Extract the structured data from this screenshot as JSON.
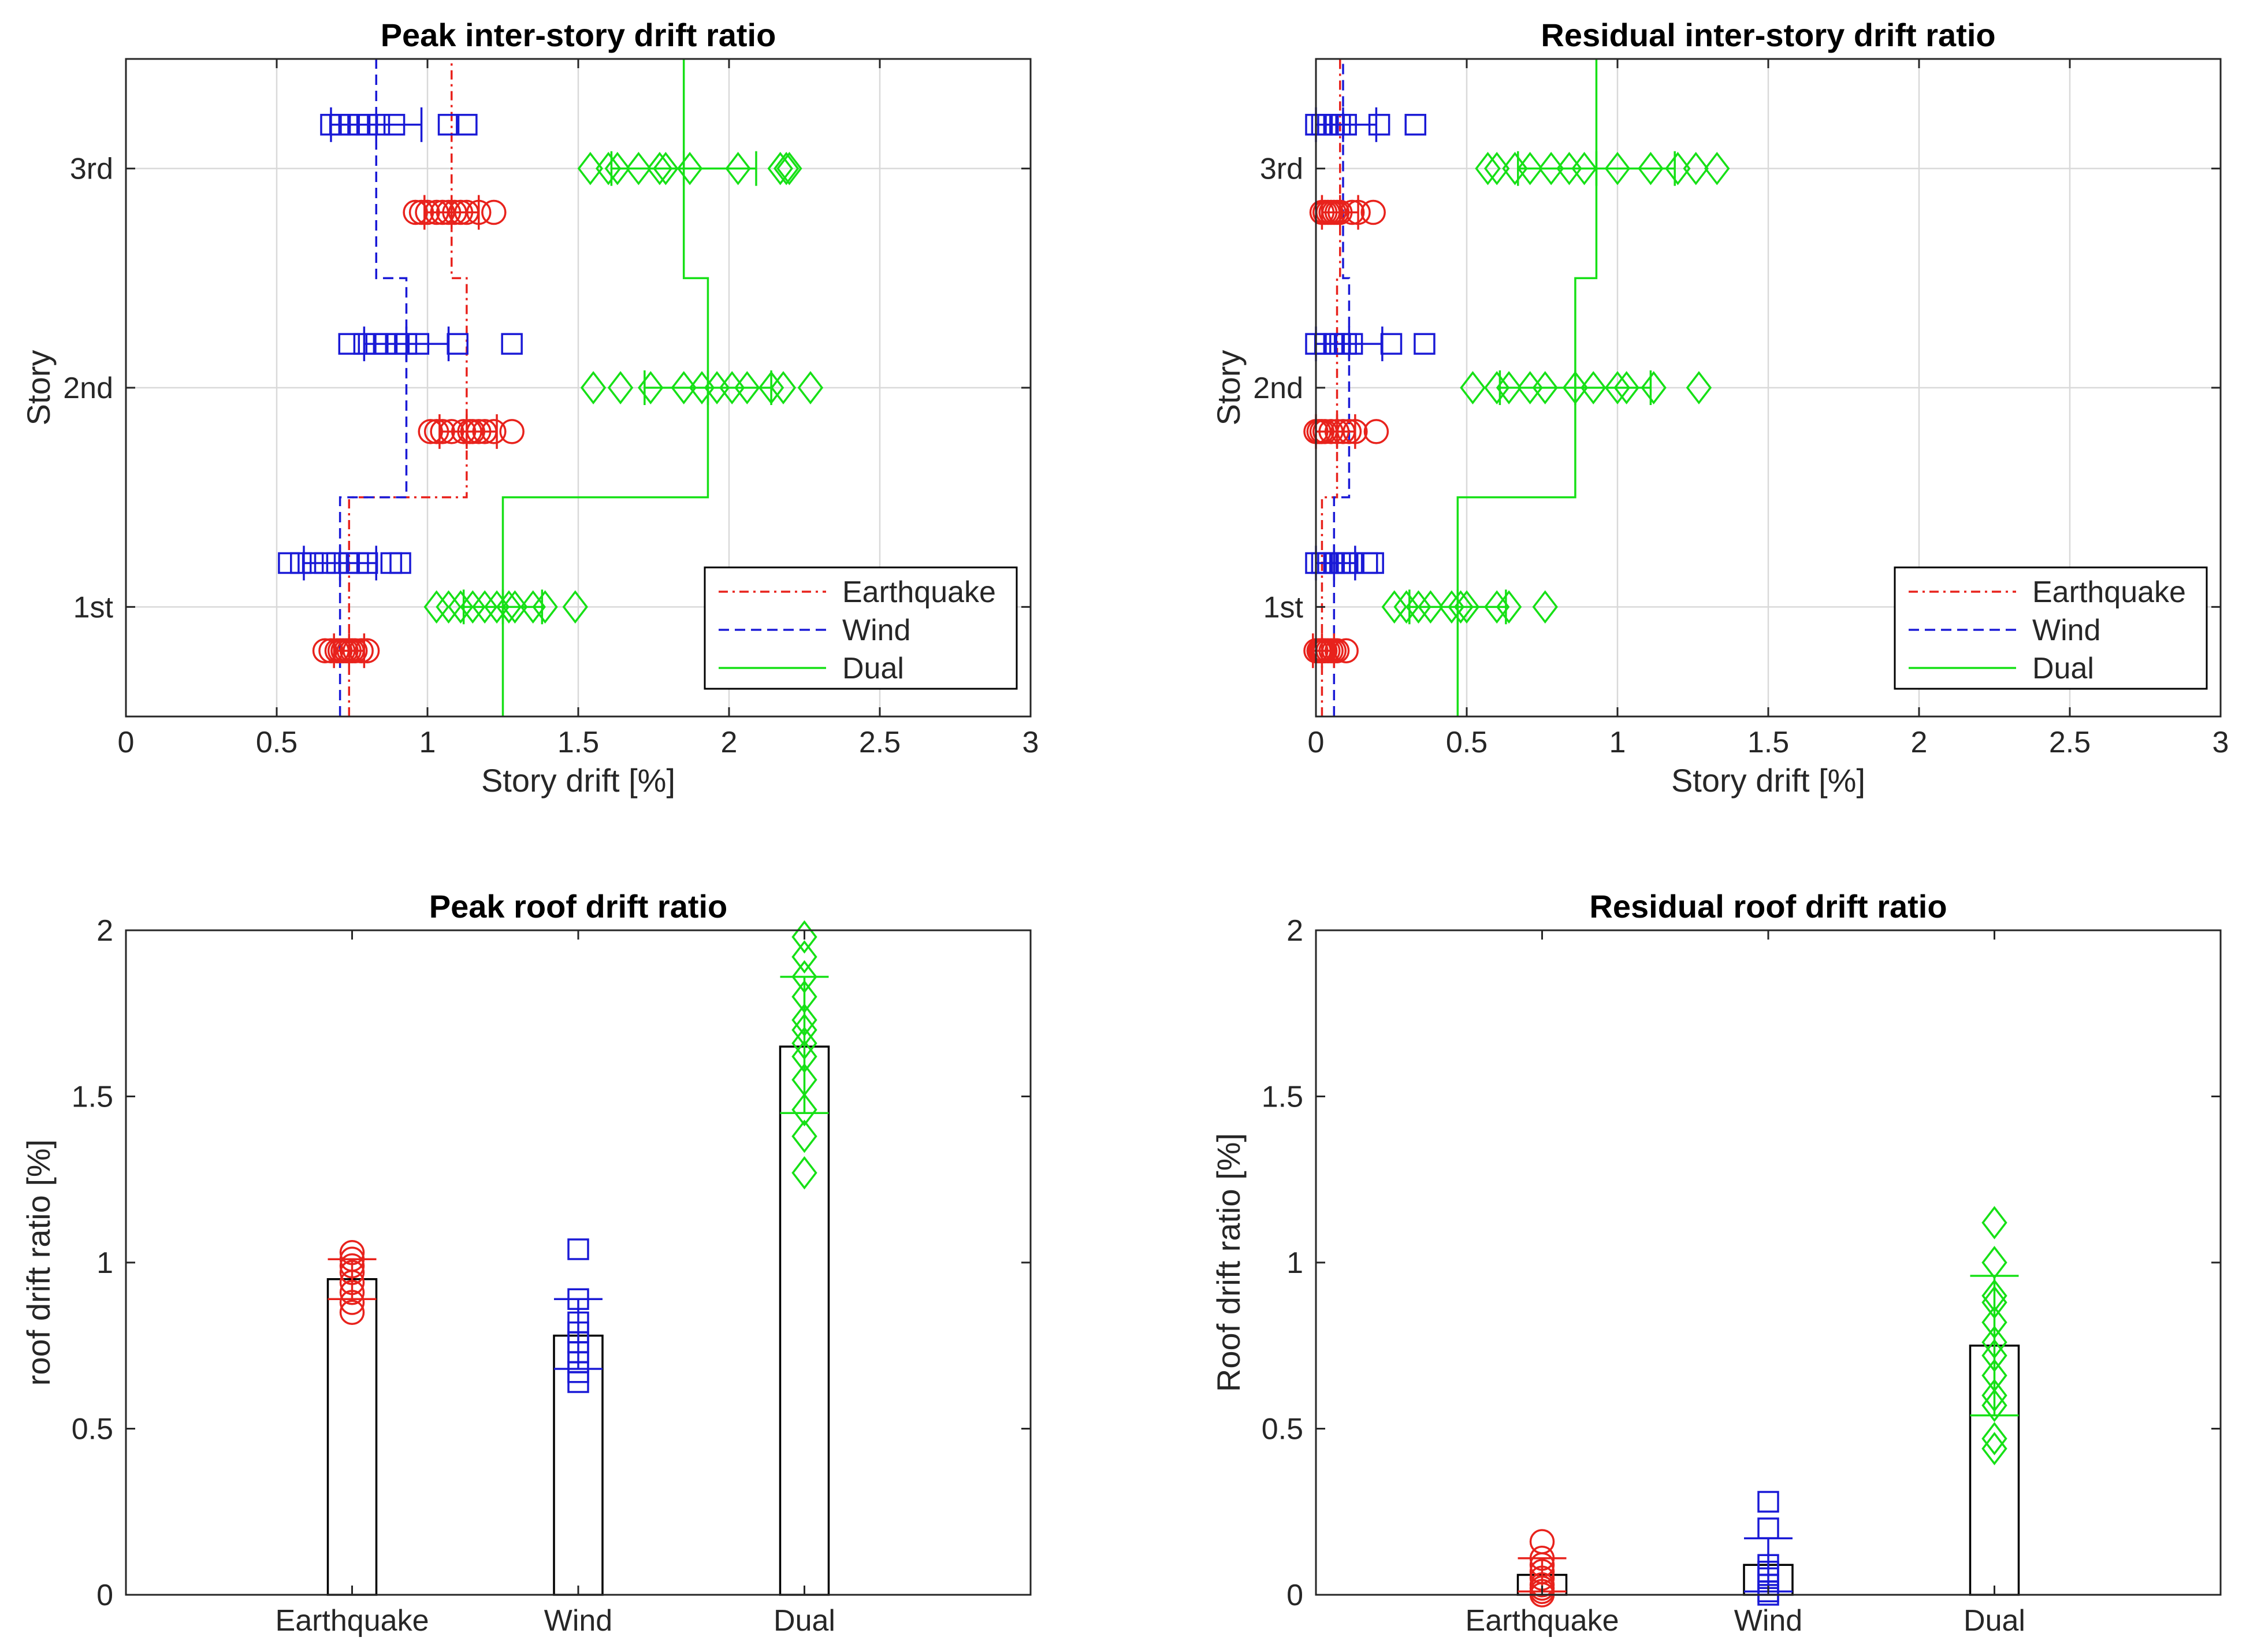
{
  "colors": {
    "earthquake": "#e8221c",
    "wind": "#1a1ad6",
    "dual": "#16e016",
    "axis": "#262626",
    "grid": "#d9d9d9"
  },
  "chart_data": [
    {
      "id": "peak-story",
      "type": "scatter",
      "title": "Peak inter-story drift ratio",
      "xlabel": "Story drift [%]",
      "ylabel": "Story",
      "xlim": [
        0,
        3
      ],
      "ylim": [
        0.5,
        3.5
      ],
      "xticks": [
        0,
        0.5,
        1,
        1.5,
        2,
        2.5,
        3
      ],
      "xtick_labels": [
        "0",
        "0.5",
        "1",
        "1.5",
        "2",
        "2.5",
        "3"
      ],
      "yticks": [
        1,
        2,
        3
      ],
      "ytick_labels": [
        "1st",
        "2nd",
        "3rd"
      ],
      "grid": true,
      "legend": {
        "placement": "bottom-right",
        "entries": [
          "Earthquake",
          "Wind",
          "Dual"
        ]
      },
      "series": [
        {
          "name": "Earthquake",
          "marker": "circle",
          "color": "#e8221c",
          "linestyle": "dashdot",
          "points": [
            {
              "y": 0.8,
              "x": [
                0.66,
                0.68,
                0.7,
                0.71,
                0.72,
                0.73,
                0.74,
                0.75,
                0.76,
                0.78,
                0.8
              ]
            },
            {
              "y": 1.8,
              "x": [
                1.01,
                1.03,
                1.05,
                1.08,
                1.12,
                1.14,
                1.15,
                1.17,
                1.19,
                1.22,
                1.28
              ]
            },
            {
              "y": 2.8,
              "x": [
                0.96,
                0.98,
                1.0,
                1.03,
                1.05,
                1.07,
                1.09,
                1.11,
                1.13,
                1.17,
                1.22
              ]
            }
          ],
          "errorbars": [
            {
              "y": 0.8,
              "mean": 0.74,
              "low": 0.69,
              "high": 0.79
            },
            {
              "y": 1.8,
              "mean": 1.13,
              "low": 1.04,
              "high": 1.23
            },
            {
              "y": 2.8,
              "mean": 1.08,
              "low": 0.99,
              "high": 1.17
            }
          ],
          "mean_profile": [
            [
              0.5,
              0.74
            ],
            [
              1.5,
              0.74
            ],
            [
              1.5,
              1.13
            ],
            [
              2.5,
              1.13
            ],
            [
              2.5,
              1.08
            ],
            [
              3.5,
              1.08
            ]
          ]
        },
        {
          "name": "Wind",
          "marker": "square",
          "color": "#1a1ad6",
          "linestyle": "dashed",
          "points": [
            {
              "y": 1.2,
              "x": [
                0.54,
                0.58,
                0.62,
                0.66,
                0.7,
                0.74,
                0.77,
                0.8,
                0.88,
                0.91
              ]
            },
            {
              "y": 2.2,
              "x": [
                0.74,
                0.79,
                0.83,
                0.86,
                0.9,
                0.93,
                0.97,
                1.1,
                1.28
              ]
            },
            {
              "y": 3.2,
              "x": [
                0.68,
                0.71,
                0.74,
                0.77,
                0.8,
                0.84,
                0.89,
                1.07,
                1.13
              ]
            }
          ],
          "errorbars": [
            {
              "y": 1.2,
              "mean": 0.71,
              "low": 0.59,
              "high": 0.83
            },
            {
              "y": 2.2,
              "mean": 0.93,
              "low": 0.79,
              "high": 1.07
            },
            {
              "y": 3.2,
              "mean": 0.83,
              "low": 0.68,
              "high": 0.98
            }
          ],
          "mean_profile": [
            [
              0.5,
              0.71
            ],
            [
              1.5,
              0.71
            ],
            [
              1.5,
              0.93
            ],
            [
              2.5,
              0.93
            ],
            [
              2.5,
              0.83
            ],
            [
              3.5,
              0.83
            ]
          ]
        },
        {
          "name": "Dual",
          "marker": "diamond",
          "color": "#16e016",
          "linestyle": "solid",
          "points": [
            {
              "y": 1.0,
              "x": [
                1.03,
                1.07,
                1.11,
                1.15,
                1.19,
                1.23,
                1.27,
                1.29,
                1.35,
                1.39,
                1.49
              ]
            },
            {
              "y": 2.0,
              "x": [
                1.55,
                1.64,
                1.74,
                1.85,
                1.91,
                1.96,
                2.01,
                2.06,
                2.14,
                2.18,
                2.27
              ]
            },
            {
              "y": 3.0,
              "x": [
                1.54,
                1.6,
                1.63,
                1.7,
                1.77,
                1.79,
                1.87,
                2.03,
                2.17,
                2.19,
                2.2
              ]
            }
          ],
          "errorbars": [
            {
              "y": 1.0,
              "mean": 1.25,
              "low": 1.12,
              "high": 1.38
            },
            {
              "y": 2.0,
              "mean": 1.93,
              "low": 1.72,
              "high": 2.14
            },
            {
              "y": 3.0,
              "mean": 1.85,
              "low": 1.61,
              "high": 2.09
            }
          ],
          "mean_profile": [
            [
              0.5,
              1.25
            ],
            [
              1.5,
              1.25
            ],
            [
              1.5,
              1.93
            ],
            [
              2.5,
              1.93
            ],
            [
              2.5,
              1.85
            ],
            [
              3.5,
              1.85
            ]
          ]
        }
      ]
    },
    {
      "id": "residual-story",
      "type": "scatter",
      "title": "Residual inter-story drift ratio",
      "xlabel": "Story drift [%]",
      "ylabel": "Story",
      "xlim": [
        0,
        3
      ],
      "ylim": [
        0.5,
        3.5
      ],
      "xticks": [
        0,
        0.5,
        1,
        1.5,
        2,
        2.5,
        3
      ],
      "xtick_labels": [
        "0",
        "0.5",
        "1",
        "1.5",
        "2",
        "2.5",
        "3"
      ],
      "yticks": [
        1,
        2,
        3
      ],
      "ytick_labels": [
        "1st",
        "2nd",
        "3rd"
      ],
      "grid": true,
      "legend": {
        "placement": "bottom-right",
        "entries": [
          "Earthquake",
          "Wind",
          "Dual"
        ]
      },
      "series": [
        {
          "name": "Earthquake",
          "marker": "circle",
          "color": "#e8221c",
          "linestyle": "dashdot",
          "points": [
            {
              "y": 0.8,
              "x": [
                0.0,
                0.01,
                0.015,
                0.02,
                0.025,
                0.03,
                0.04,
                0.05,
                0.06,
                0.07,
                0.1
              ]
            },
            {
              "y": 1.8,
              "x": [
                0.0,
                0.01,
                0.02,
                0.03,
                0.05,
                0.07,
                0.09,
                0.11,
                0.13,
                0.2
              ]
            },
            {
              "y": 2.8,
              "x": [
                0.02,
                0.03,
                0.04,
                0.05,
                0.06,
                0.07,
                0.08,
                0.12,
                0.14,
                0.19
              ]
            }
          ],
          "errorbars": [
            {
              "y": 0.8,
              "mean": 0.02,
              "low": -0.01,
              "high": 0.06
            },
            {
              "y": 1.8,
              "mean": 0.07,
              "low": 0.0,
              "high": 0.13
            },
            {
              "y": 2.8,
              "mean": 0.08,
              "low": 0.02,
              "high": 0.14
            }
          ],
          "mean_profile": [
            [
              0.5,
              0.02
            ],
            [
              1.5,
              0.02
            ],
            [
              1.5,
              0.07
            ],
            [
              2.5,
              0.07
            ],
            [
              2.5,
              0.08
            ],
            [
              3.5,
              0.08
            ]
          ]
        },
        {
          "name": "Wind",
          "marker": "square",
          "color": "#1a1ad6",
          "linestyle": "dashed",
          "points": [
            {
              "y": 1.2,
              "x": [
                0.0,
                0.02,
                0.04,
                0.06,
                0.08,
                0.1,
                0.12,
                0.17,
                0.19
              ]
            },
            {
              "y": 2.2,
              "x": [
                0.0,
                0.03,
                0.06,
                0.08,
                0.1,
                0.12,
                0.25,
                0.36
              ]
            },
            {
              "y": 3.2,
              "x": [
                0.0,
                0.02,
                0.04,
                0.06,
                0.08,
                0.1,
                0.21,
                0.33
              ]
            }
          ],
          "errorbars": [
            {
              "y": 1.2,
              "mean": 0.06,
              "low": 0.0,
              "high": 0.13
            },
            {
              "y": 2.2,
              "mean": 0.11,
              "low": 0.0,
              "high": 0.22
            },
            {
              "y": 3.2,
              "mean": 0.09,
              "low": 0.0,
              "high": 0.2
            }
          ],
          "mean_profile": [
            [
              0.5,
              0.06
            ],
            [
              1.5,
              0.06
            ],
            [
              1.5,
              0.11
            ],
            [
              2.5,
              0.11
            ],
            [
              2.5,
              0.09
            ],
            [
              3.5,
              0.09
            ]
          ]
        },
        {
          "name": "Dual",
          "marker": "diamond",
          "color": "#16e016",
          "linestyle": "solid",
          "points": [
            {
              "y": 1.0,
              "x": [
                0.26,
                0.3,
                0.34,
                0.38,
                0.45,
                0.48,
                0.5,
                0.6,
                0.64,
                0.76
              ]
            },
            {
              "y": 2.0,
              "x": [
                0.52,
                0.6,
                0.64,
                0.71,
                0.76,
                0.86,
                0.92,
                1.0,
                1.03,
                1.12,
                1.27
              ]
            },
            {
              "y": 3.0,
              "x": [
                0.57,
                0.6,
                0.66,
                0.71,
                0.78,
                0.84,
                0.89,
                1.0,
                1.11,
                1.2,
                1.26,
                1.33
              ]
            }
          ],
          "errorbars": [
            {
              "y": 1.0,
              "mean": 0.47,
              "low": 0.31,
              "high": 0.63
            },
            {
              "y": 2.0,
              "mean": 0.86,
              "low": 0.61,
              "high": 1.11
            },
            {
              "y": 3.0,
              "mean": 0.93,
              "low": 0.67,
              "high": 1.19
            }
          ],
          "mean_profile": [
            [
              0.5,
              0.47
            ],
            [
              1.5,
              0.47
            ],
            [
              1.5,
              0.86
            ],
            [
              2.5,
              0.86
            ],
            [
              2.5,
              0.93
            ],
            [
              3.5,
              0.93
            ]
          ]
        }
      ]
    },
    {
      "id": "peak-roof",
      "type": "bar",
      "title": "Peak roof drift ratio",
      "xlabel": "",
      "ylabel": "roof drift ratio [%]",
      "categories": [
        "Earthquake",
        "Wind",
        "Dual"
      ],
      "values": [
        0.95,
        0.78,
        1.65
      ],
      "ylim": [
        0,
        2
      ],
      "yticks": [
        0,
        0.5,
        1,
        1.5,
        2
      ],
      "ytick_labels": [
        "0",
        "0.5",
        "1",
        "1.5",
        "2"
      ],
      "grid": false,
      "series": [
        {
          "name": "Earthquake",
          "marker": "circle",
          "color": "#e8221c",
          "points": [
            0.85,
            0.88,
            0.91,
            0.94,
            0.97,
            0.99,
            1.01,
            1.03
          ],
          "errorbar": {
            "low": 0.89,
            "high": 1.01
          }
        },
        {
          "name": "Wind",
          "marker": "square",
          "color": "#1a1ad6",
          "points": [
            0.64,
            0.67,
            0.7,
            0.73,
            0.76,
            0.79,
            0.82,
            0.89,
            1.04
          ],
          "errorbar": {
            "low": 0.68,
            "high": 0.89
          }
        },
        {
          "name": "Dual",
          "marker": "diamond",
          "color": "#16e016",
          "points": [
            1.27,
            1.38,
            1.46,
            1.55,
            1.62,
            1.66,
            1.7,
            1.73,
            1.8,
            1.86,
            1.92,
            1.98
          ],
          "errorbar": {
            "low": 1.45,
            "high": 1.86
          }
        }
      ]
    },
    {
      "id": "residual-roof",
      "type": "bar",
      "title": "Residual roof drift ratio",
      "xlabel": "",
      "ylabel": "Roof drift ratio [%]",
      "categories": [
        "Earthquake",
        "Wind",
        "Dual"
      ],
      "values": [
        0.06,
        0.09,
        0.75
      ],
      "ylim": [
        0,
        2
      ],
      "yticks": [
        0,
        0.5,
        1,
        1.5,
        2
      ],
      "ytick_labels": [
        "0",
        "0.5",
        "1",
        "1.5",
        "2"
      ],
      "grid": false,
      "series": [
        {
          "name": "Earthquake",
          "marker": "circle",
          "color": "#e8221c",
          "points": [
            0.0,
            0.01,
            0.02,
            0.03,
            0.05,
            0.07,
            0.09,
            0.11,
            0.16
          ],
          "errorbar": {
            "low": 0.01,
            "high": 0.11
          }
        },
        {
          "name": "Wind",
          "marker": "square",
          "color": "#1a1ad6",
          "points": [
            0.0,
            0.01,
            0.03,
            0.05,
            0.07,
            0.09,
            0.2,
            0.28
          ],
          "errorbar": {
            "low": 0.01,
            "high": 0.17
          }
        },
        {
          "name": "Dual",
          "marker": "diamond",
          "color": "#16e016",
          "points": [
            0.44,
            0.47,
            0.57,
            0.6,
            0.66,
            0.72,
            0.76,
            0.82,
            0.88,
            0.9,
            1.0,
            1.12
          ],
          "errorbar": {
            "low": 0.54,
            "high": 0.96
          }
        }
      ]
    }
  ]
}
